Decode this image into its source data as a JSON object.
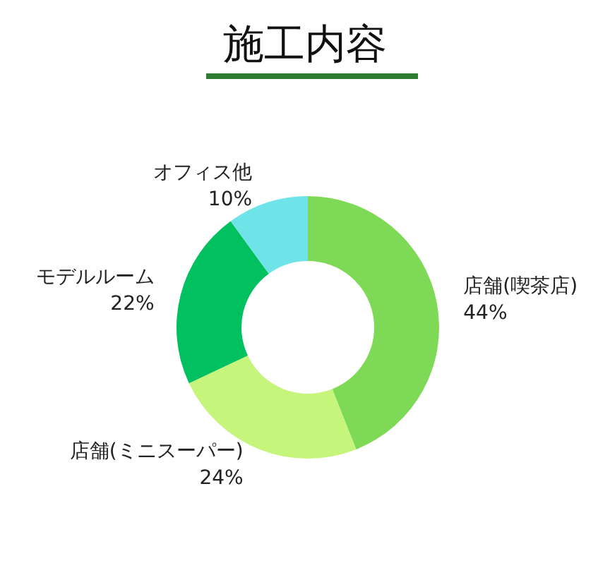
{
  "chart_data": {
    "type": "donut",
    "title": "施工内容",
    "categories": [
      "店舗(喫茶店)",
      "店舗(ミニスーパー)",
      "モデルルーム",
      "オフィス他"
    ],
    "values": [
      44,
      24,
      22,
      10
    ],
    "value_labels": [
      "44%",
      "24%",
      "22%",
      "10%"
    ],
    "colors": [
      "#7ed957",
      "#c6f57c",
      "#00c060",
      "#6ee4e8"
    ],
    "legend": false
  }
}
